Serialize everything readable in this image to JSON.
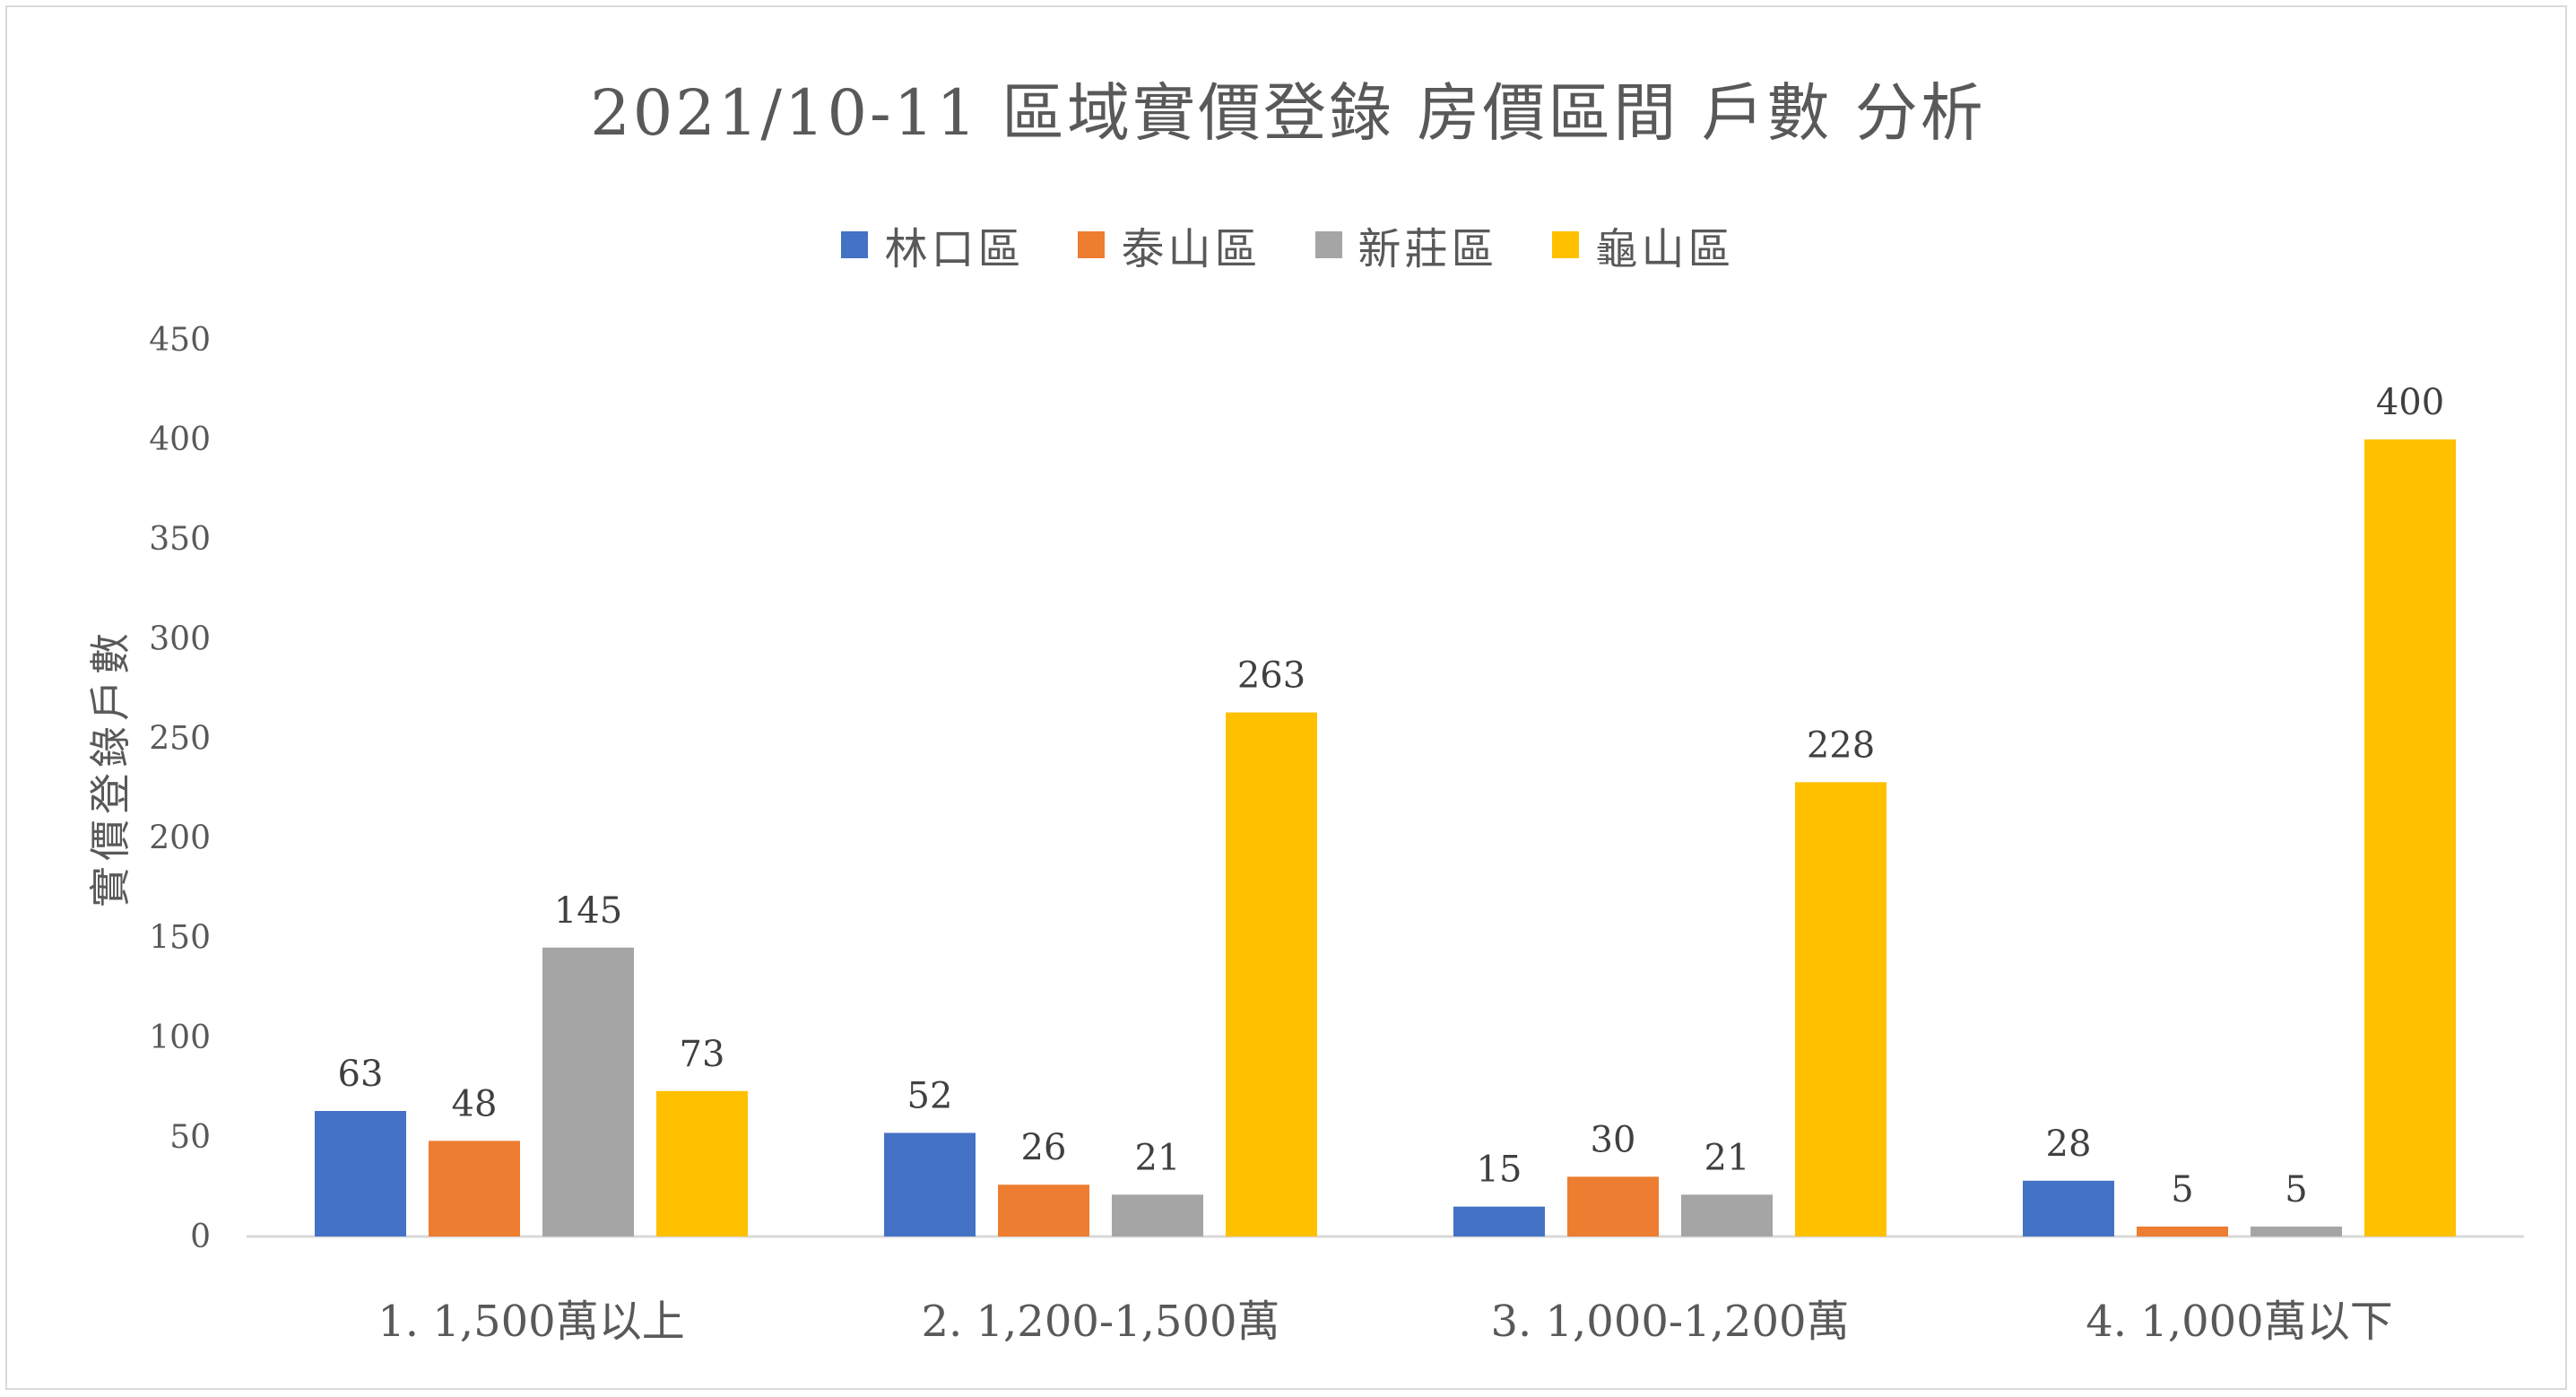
{
  "chart_data": {
    "type": "bar",
    "title": "2021/10-11 區域實價登錄 房價區間 戶數 分析",
    "ylabel": "實價登錄戶數",
    "xlabel": "",
    "ylim": [
      0,
      450
    ],
    "yticks": [
      0,
      50,
      100,
      150,
      200,
      250,
      300,
      350,
      400,
      450
    ],
    "categories": [
      "1. 1,500萬以上",
      "2. 1,200-1,500萬",
      "3. 1,000-1,200萬",
      "4. 1,000萬以下"
    ],
    "series": [
      {
        "name": "林口區",
        "color": "#4472c4",
        "values": [
          63,
          52,
          15,
          28
        ]
      },
      {
        "name": "泰山區",
        "color": "#ed7d31",
        "values": [
          48,
          26,
          30,
          5
        ]
      },
      {
        "name": "新莊區",
        "color": "#a5a5a5",
        "values": [
          145,
          21,
          21,
          5
        ]
      },
      {
        "name": "龜山區",
        "color": "#ffc000",
        "values": [
          73,
          263,
          228,
          400
        ]
      }
    ],
    "legend": "top",
    "grid": false,
    "data_labels": true
  }
}
